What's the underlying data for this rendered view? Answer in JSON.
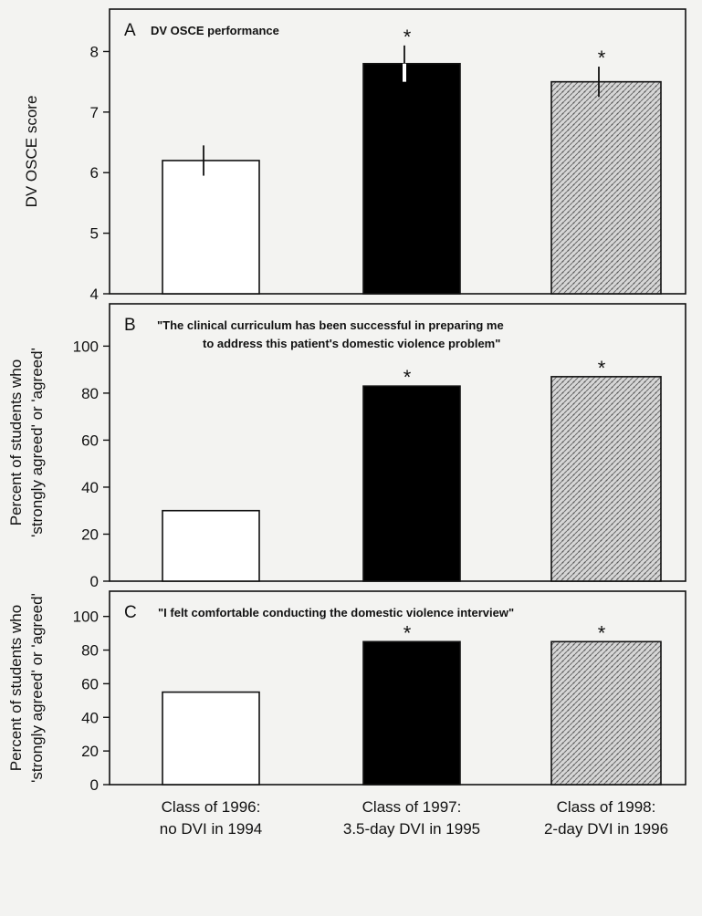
{
  "colors": {
    "control": "#ffffff",
    "dvi_3_5_day": "#000000",
    "dvi_2_day": "#bdbdbd",
    "axis": "#111111",
    "background": "#f3f3f1"
  },
  "categories": [
    "Class of 1996:\nno DVI in 1994",
    "Class of 1997:\n3.5-day DVI in 1995",
    "Class of 1998:\n2-day DVI in 1996"
  ],
  "chart_data": [
    {
      "type": "bar",
      "panel_letter": "A",
      "title": "DV OSCE performance",
      "ylabel": "DV OSCE score",
      "ylim": [
        4,
        8.7
      ],
      "yticks": [
        4,
        5,
        6,
        7,
        8
      ],
      "categories": [
        "Class of 1996: no DVI in 1994",
        "Class of 1997: 3.5-day DVI in 1995",
        "Class of 1998: 2-day DVI in 1996"
      ],
      "values": [
        6.2,
        7.8,
        7.5
      ],
      "error": [
        0.25,
        0.3,
        0.25
      ],
      "significance": [
        "",
        "*",
        "*"
      ]
    },
    {
      "type": "bar",
      "panel_letter": "B",
      "title": "\"The clinical curriculum has been successful in preparing me\nto address this patient's domestic violence problem\"",
      "ylabel": "Percent of students who\n'strongly agreed' or 'agreed'",
      "ylim": [
        0,
        118
      ],
      "yticks": [
        0,
        20,
        40,
        60,
        80,
        100
      ],
      "categories": [
        "Class of 1996: no DVI in 1994",
        "Class of 1997: 3.5-day DVI in 1995",
        "Class of 1998: 2-day DVI in 1996"
      ],
      "values": [
        30,
        83,
        87
      ],
      "significance": [
        "",
        "*",
        "*"
      ]
    },
    {
      "type": "bar",
      "panel_letter": "C",
      "title": "\"I felt comfortable conducting the domestic violence interview\"",
      "ylabel": "Percent of students who\n'strongly agreed' or 'agreed'",
      "ylim": [
        0,
        115
      ],
      "yticks": [
        0,
        20,
        40,
        60,
        80,
        100
      ],
      "categories": [
        "Class of 1996: no DVI in 1994",
        "Class of 1997: 3.5-day DVI in 1995",
        "Class of 1998: 2-day DVI in 1996"
      ],
      "values": [
        55,
        85,
        85
      ],
      "significance": [
        "",
        "*",
        "*"
      ]
    }
  ]
}
